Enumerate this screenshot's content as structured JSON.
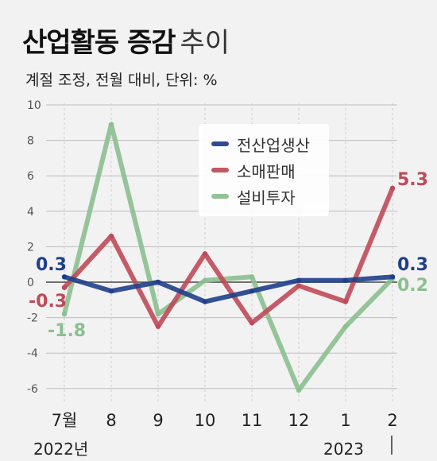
{
  "header": {
    "title_bold": "산업활동 증감",
    "title_light": "추이",
    "subtitle": "계절 조정, 전월 대비, 단위: %"
  },
  "colors": {
    "production": "#1f3f8c",
    "retail": "#bf4a58",
    "investment": "#8cbf90",
    "grid": "#bdbdbd",
    "axis": "#444444",
    "background": "#f2f2f2"
  },
  "chart_data": {
    "type": "line",
    "categories": [
      "7월",
      "8",
      "9",
      "10",
      "11",
      "12",
      "1",
      "2"
    ],
    "year_labels": [
      "2022년",
      "2023"
    ],
    "yticks": [
      "10",
      "8",
      "6",
      "4",
      "2",
      "0",
      "-2",
      "-4",
      "-6"
    ],
    "ylim": [
      -7,
      10
    ],
    "grid": true,
    "legend_position": "top-right",
    "series": [
      {
        "name": "전산업생산",
        "key": "production",
        "values": [
          0.3,
          -0.5,
          0.0,
          -1.1,
          -0.5,
          0.1,
          0.1,
          0.3
        ]
      },
      {
        "name": "소매판매",
        "key": "retail",
        "values": [
          -0.3,
          2.6,
          -2.5,
          1.6,
          -2.3,
          -0.2,
          -1.1,
          5.3
        ]
      },
      {
        "name": "설비투자",
        "key": "investment",
        "values": [
          -1.8,
          8.9,
          -1.8,
          0.1,
          0.3,
          -6.1,
          -2.5,
          0.2
        ]
      }
    ],
    "annotations": [
      {
        "text": "0.3",
        "series": "production",
        "index": 0
      },
      {
        "text": "-0.3",
        "series": "retail",
        "index": 0
      },
      {
        "text": "-1.8",
        "series": "investment",
        "index": 0
      },
      {
        "text": "5.3",
        "series": "retail",
        "index": 7
      },
      {
        "text": "0.3",
        "series": "production",
        "index": 7
      },
      {
        "text": "0.2",
        "series": "investment",
        "index": 7
      }
    ]
  }
}
